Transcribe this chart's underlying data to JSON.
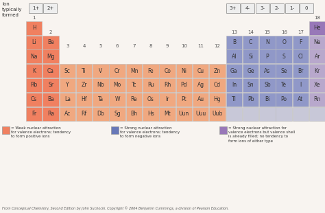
{
  "bg_color": "#f8f4f0",
  "salmon": "#F08060",
  "salmon_light": "#F0A880",
  "blue_dark": "#6878B8",
  "blue_light": "#9098C8",
  "purple": "#9878B8",
  "purple_light": "#B8A8CC",
  "gray_box": "#E8E8E0",
  "text_dark": "#333333",
  "text_gray": "#555555",
  "border_color": "#bbbbbb",
  "ion_charges_left": [
    "1+",
    "2+"
  ],
  "ion_charges_right": [
    "3+",
    "4-",
    "3-",
    "2-",
    "1-",
    "0"
  ],
  "elements": [
    {
      "symbol": "H",
      "row": 1,
      "col": 1,
      "color": "salmon"
    },
    {
      "symbol": "He",
      "row": 1,
      "col": 18,
      "color": "purple"
    },
    {
      "symbol": "Li",
      "row": 2,
      "col": 1,
      "color": "salmon"
    },
    {
      "symbol": "Be",
      "row": 2,
      "col": 2,
      "color": "salmon"
    },
    {
      "symbol": "B",
      "row": 2,
      "col": 13,
      "color": "blue_light"
    },
    {
      "symbol": "C",
      "row": 2,
      "col": 14,
      "color": "blue_light"
    },
    {
      "symbol": "N",
      "row": 2,
      "col": 15,
      "color": "blue_light"
    },
    {
      "symbol": "O",
      "row": 2,
      "col": 16,
      "color": "blue_light"
    },
    {
      "symbol": "F",
      "row": 2,
      "col": 17,
      "color": "blue_light"
    },
    {
      "symbol": "Ne",
      "row": 2,
      "col": 18,
      "color": "purple_light"
    },
    {
      "symbol": "Na",
      "row": 3,
      "col": 1,
      "color": "salmon"
    },
    {
      "symbol": "Mg",
      "row": 3,
      "col": 2,
      "color": "salmon"
    },
    {
      "symbol": "Al",
      "row": 3,
      "col": 13,
      "color": "blue_light"
    },
    {
      "symbol": "Si",
      "row": 3,
      "col": 14,
      "color": "blue_light"
    },
    {
      "symbol": "P",
      "row": 3,
      "col": 15,
      "color": "blue_light"
    },
    {
      "symbol": "S",
      "row": 3,
      "col": 16,
      "color": "blue_light"
    },
    {
      "symbol": "Cl",
      "row": 3,
      "col": 17,
      "color": "blue_light"
    },
    {
      "symbol": "Ar",
      "row": 3,
      "col": 18,
      "color": "purple_light"
    },
    {
      "symbol": "K",
      "row": 4,
      "col": 1,
      "color": "salmon"
    },
    {
      "symbol": "Ca",
      "row": 4,
      "col": 2,
      "color": "salmon"
    },
    {
      "symbol": "Sc",
      "row": 4,
      "col": 3,
      "color": "salmon_light"
    },
    {
      "symbol": "Ti",
      "row": 4,
      "col": 4,
      "color": "salmon_light"
    },
    {
      "symbol": "V",
      "row": 4,
      "col": 5,
      "color": "salmon_light"
    },
    {
      "symbol": "Cr",
      "row": 4,
      "col": 6,
      "color": "salmon_light"
    },
    {
      "symbol": "Mn",
      "row": 4,
      "col": 7,
      "color": "salmon_light"
    },
    {
      "symbol": "Fe",
      "row": 4,
      "col": 8,
      "color": "salmon_light"
    },
    {
      "symbol": "Co",
      "row": 4,
      "col": 9,
      "color": "salmon_light"
    },
    {
      "symbol": "Ni",
      "row": 4,
      "col": 10,
      "color": "salmon_light"
    },
    {
      "symbol": "Cu",
      "row": 4,
      "col": 11,
      "color": "salmon_light"
    },
    {
      "symbol": "Zn",
      "row": 4,
      "col": 12,
      "color": "salmon_light"
    },
    {
      "symbol": "Ga",
      "row": 4,
      "col": 13,
      "color": "blue_light"
    },
    {
      "symbol": "Ge",
      "row": 4,
      "col": 14,
      "color": "blue_light"
    },
    {
      "symbol": "As",
      "row": 4,
      "col": 15,
      "color": "blue_light"
    },
    {
      "symbol": "Se",
      "row": 4,
      "col": 16,
      "color": "blue_light"
    },
    {
      "symbol": "Br",
      "row": 4,
      "col": 17,
      "color": "blue_light"
    },
    {
      "symbol": "Kr",
      "row": 4,
      "col": 18,
      "color": "purple_light"
    },
    {
      "symbol": "Rb",
      "row": 5,
      "col": 1,
      "color": "salmon"
    },
    {
      "symbol": "Sr",
      "row": 5,
      "col": 2,
      "color": "salmon"
    },
    {
      "symbol": "Y",
      "row": 5,
      "col": 3,
      "color": "salmon_light"
    },
    {
      "symbol": "Zr",
      "row": 5,
      "col": 4,
      "color": "salmon_light"
    },
    {
      "symbol": "Nb",
      "row": 5,
      "col": 5,
      "color": "salmon_light"
    },
    {
      "symbol": "Mo",
      "row": 5,
      "col": 6,
      "color": "salmon_light"
    },
    {
      "symbol": "Tc",
      "row": 5,
      "col": 7,
      "color": "salmon_light"
    },
    {
      "symbol": "Ru",
      "row": 5,
      "col": 8,
      "color": "salmon_light"
    },
    {
      "symbol": "Rh",
      "row": 5,
      "col": 9,
      "color": "salmon_light"
    },
    {
      "symbol": "Pd",
      "row": 5,
      "col": 10,
      "color": "salmon_light"
    },
    {
      "symbol": "Ag",
      "row": 5,
      "col": 11,
      "color": "salmon_light"
    },
    {
      "symbol": "Cd",
      "row": 5,
      "col": 12,
      "color": "salmon_light"
    },
    {
      "symbol": "In",
      "row": 5,
      "col": 13,
      "color": "blue_light"
    },
    {
      "symbol": "Sn",
      "row": 5,
      "col": 14,
      "color": "blue_light"
    },
    {
      "symbol": "Sb",
      "row": 5,
      "col": 15,
      "color": "blue_light"
    },
    {
      "symbol": "Te",
      "row": 5,
      "col": 16,
      "color": "blue_light"
    },
    {
      "symbol": "I",
      "row": 5,
      "col": 17,
      "color": "blue_light"
    },
    {
      "symbol": "Xe",
      "row": 5,
      "col": 18,
      "color": "purple_light"
    },
    {
      "symbol": "Cs",
      "row": 6,
      "col": 1,
      "color": "salmon"
    },
    {
      "symbol": "Ba",
      "row": 6,
      "col": 2,
      "color": "salmon"
    },
    {
      "symbol": "La",
      "row": 6,
      "col": 3,
      "color": "salmon_light"
    },
    {
      "symbol": "Hf",
      "row": 6,
      "col": 4,
      "color": "salmon_light"
    },
    {
      "symbol": "Ta",
      "row": 6,
      "col": 5,
      "color": "salmon_light"
    },
    {
      "symbol": "W",
      "row": 6,
      "col": 6,
      "color": "salmon_light"
    },
    {
      "symbol": "Re",
      "row": 6,
      "col": 7,
      "color": "salmon_light"
    },
    {
      "symbol": "Os",
      "row": 6,
      "col": 8,
      "color": "salmon_light"
    },
    {
      "symbol": "Ir",
      "row": 6,
      "col": 9,
      "color": "salmon_light"
    },
    {
      "symbol": "Pt",
      "row": 6,
      "col": 10,
      "color": "salmon_light"
    },
    {
      "symbol": "Au",
      "row": 6,
      "col": 11,
      "color": "salmon_light"
    },
    {
      "symbol": "Hg",
      "row": 6,
      "col": 12,
      "color": "salmon_light"
    },
    {
      "symbol": "Tl",
      "row": 6,
      "col": 13,
      "color": "blue_light"
    },
    {
      "symbol": "Pb",
      "row": 6,
      "col": 14,
      "color": "blue_light"
    },
    {
      "symbol": "Bi",
      "row": 6,
      "col": 15,
      "color": "blue_light"
    },
    {
      "symbol": "Po",
      "row": 6,
      "col": 16,
      "color": "blue_light"
    },
    {
      "symbol": "At",
      "row": 6,
      "col": 17,
      "color": "blue_light"
    },
    {
      "symbol": "Rn",
      "row": 6,
      "col": 18,
      "color": "purple_light"
    },
    {
      "symbol": "Fr",
      "row": 7,
      "col": 1,
      "color": "salmon"
    },
    {
      "symbol": "Ra",
      "row": 7,
      "col": 2,
      "color": "salmon"
    },
    {
      "symbol": "Ac",
      "row": 7,
      "col": 3,
      "color": "salmon_light"
    },
    {
      "symbol": "Rf",
      "row": 7,
      "col": 4,
      "color": "salmon_light"
    },
    {
      "symbol": "Db",
      "row": 7,
      "col": 5,
      "color": "salmon_light"
    },
    {
      "symbol": "Sg",
      "row": 7,
      "col": 6,
      "color": "salmon_light"
    },
    {
      "symbol": "Bh",
      "row": 7,
      "col": 7,
      "color": "salmon_light"
    },
    {
      "symbol": "Hs",
      "row": 7,
      "col": 8,
      "color": "salmon_light"
    },
    {
      "symbol": "Mt",
      "row": 7,
      "col": 9,
      "color": "salmon_light"
    },
    {
      "symbol": "Uun",
      "row": 7,
      "col": 10,
      "color": "salmon_light"
    },
    {
      "symbol": "Uuu",
      "row": 7,
      "col": 11,
      "color": "salmon_light"
    },
    {
      "symbol": "Uub",
      "row": 7,
      "col": 12,
      "color": "salmon_light"
    }
  ],
  "empty_row7": [
    13,
    14,
    15,
    16,
    17,
    18
  ],
  "legend_labels": [
    "= Weak nuclear attraction\nfor valence electrons; tendency\nto form positive ions",
    "= Strong nuclear attraction\nfor valence electrons; tendency\nto form negative ions",
    "= Strong nuclear attraction for\nvalence electrons but valence shell\nis already filled; no tendency to\nform ions of either type"
  ],
  "footnote": "From Conceptual Chemistry, Second Edition by John Suchocki. Copyright © 2004 Benjamin Cummings, a division of Pearson Education."
}
